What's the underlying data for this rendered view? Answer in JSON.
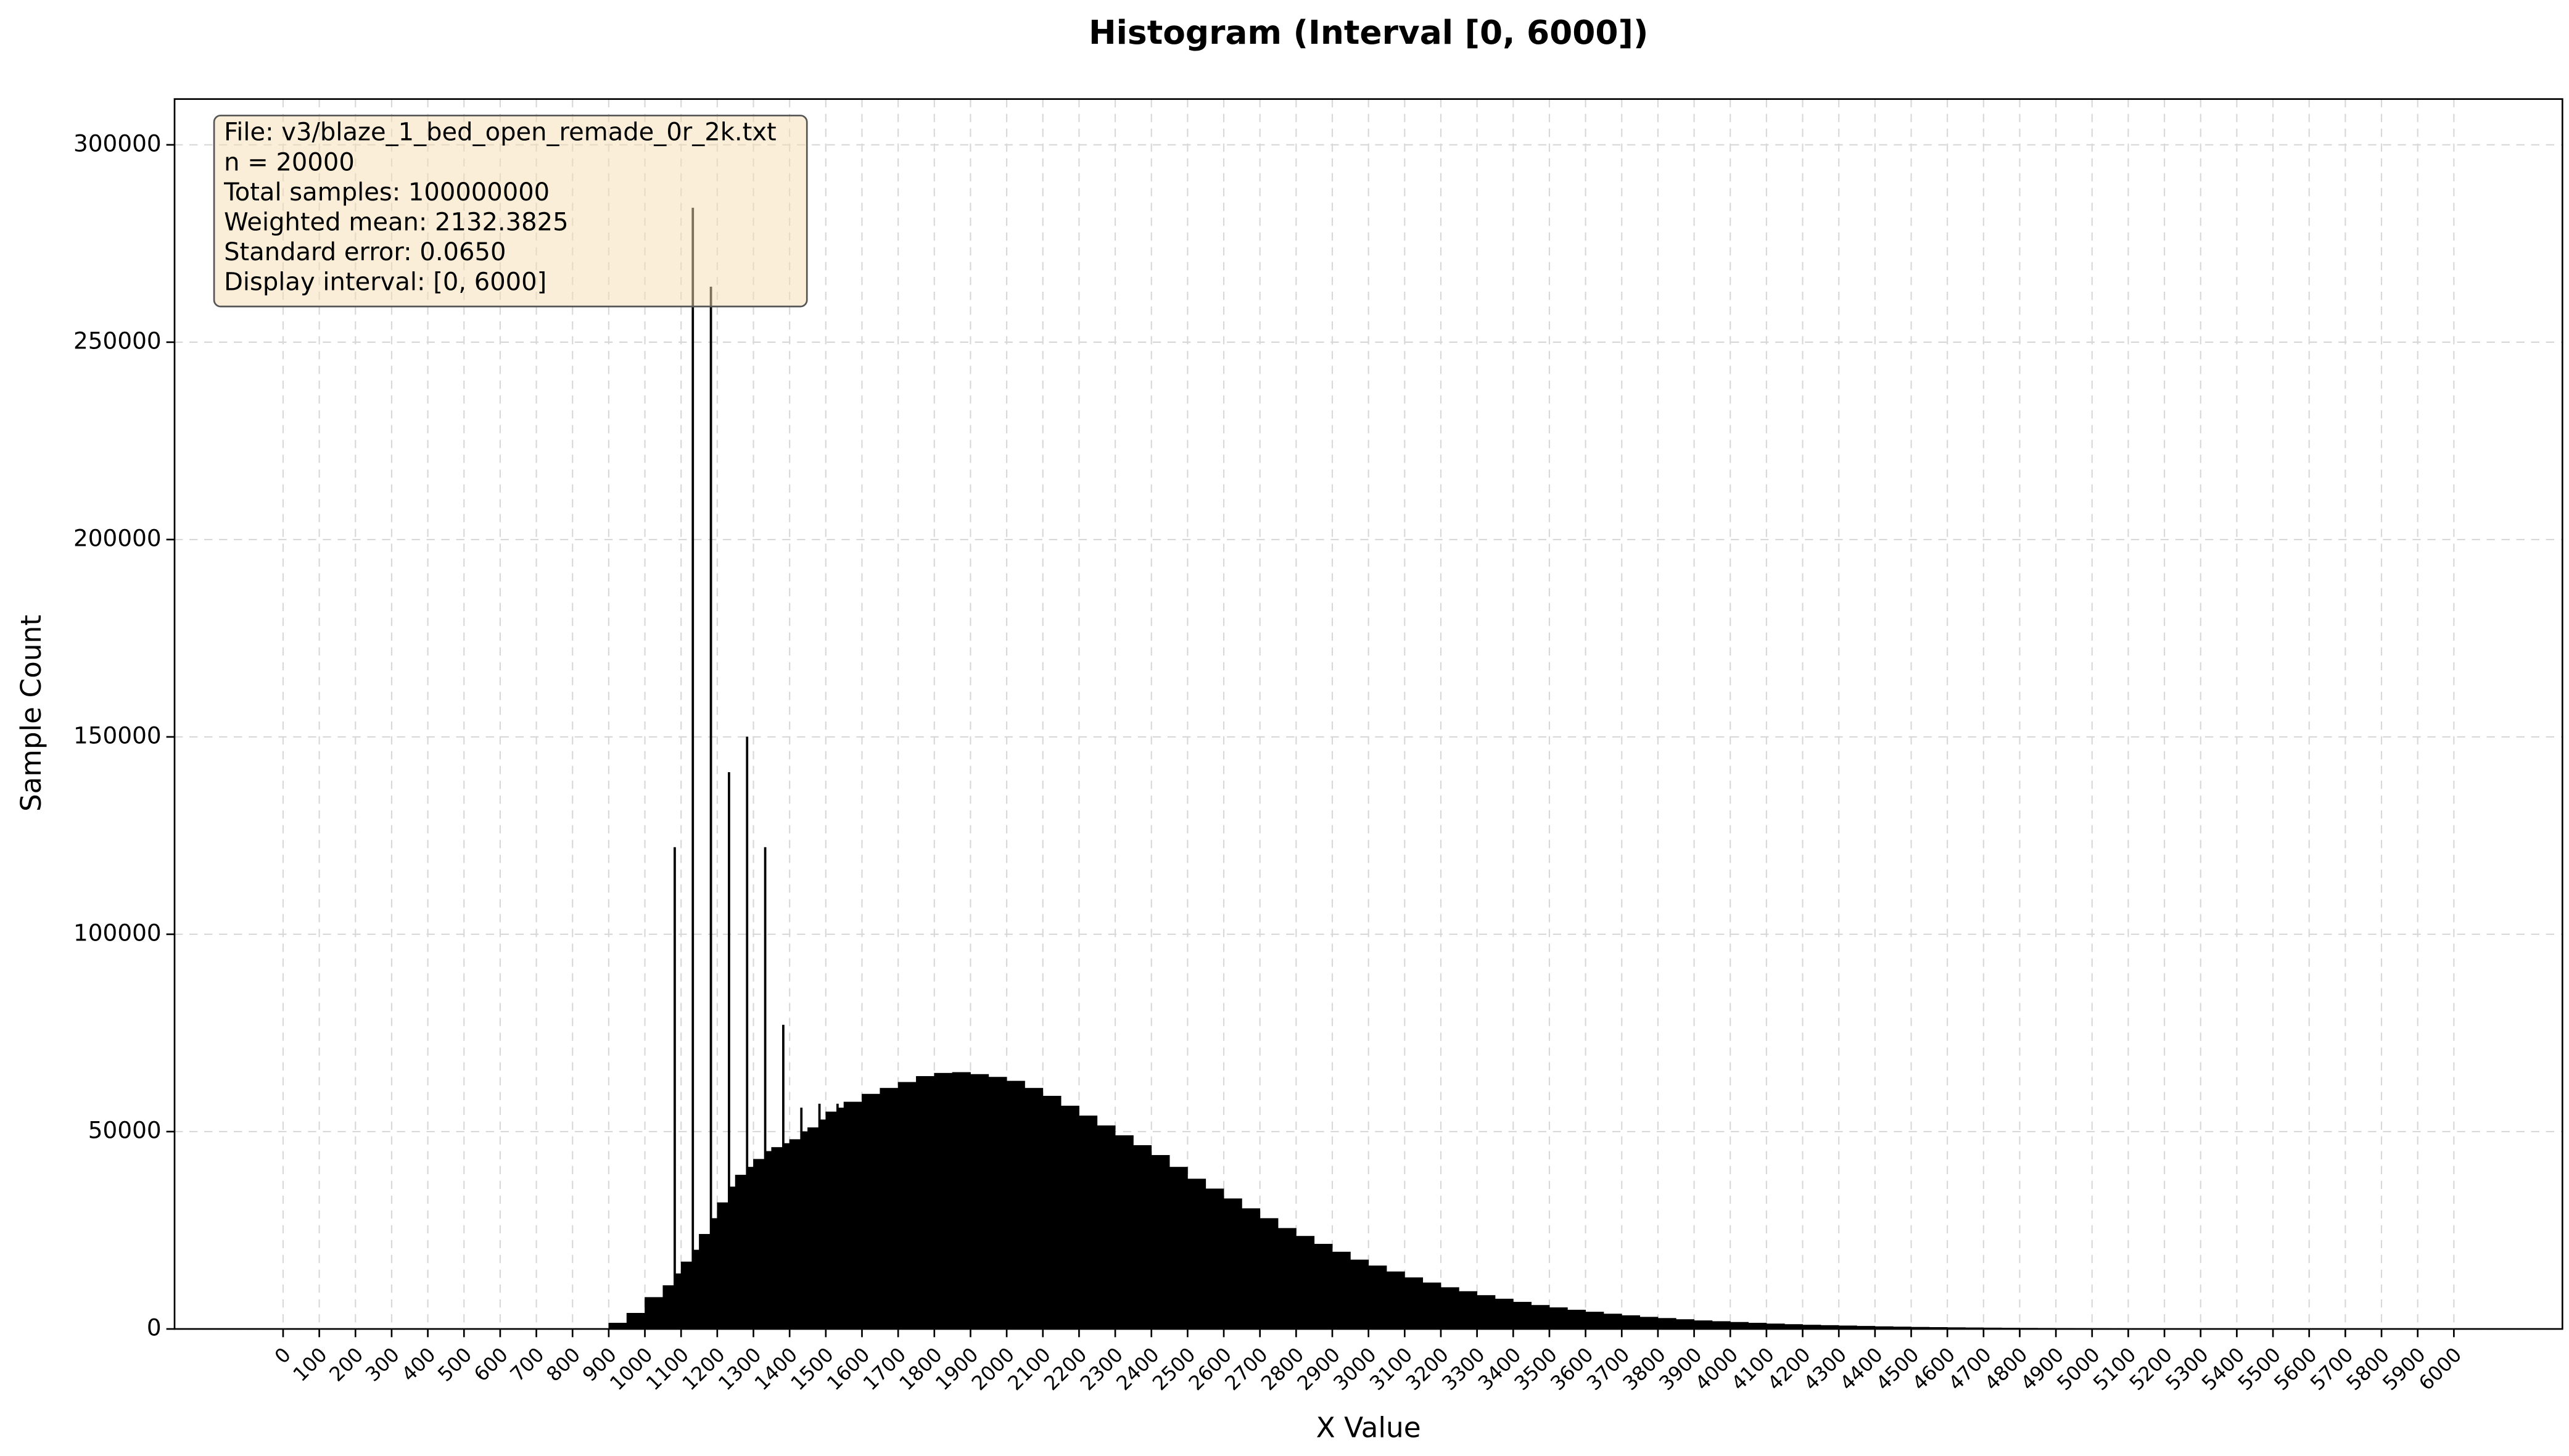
{
  "chart_data": {
    "type": "histogram",
    "title": "Histogram (Interval [0, 6000])",
    "x_label": "X Value",
    "y_label": "Sample Count",
    "info_box": [
      "File: v3/blaze_1_bed_open_remade_0r_2k.txt",
      "n = 20000",
      "Total samples: 100000000",
      "Weighted mean: 2132.3825",
      "Standard error: 0.0650",
      "Display interval: [0, 6000]"
    ],
    "color": "#000000",
    "grid": true,
    "xlim": [
      -300,
      6300
    ],
    "ylim": [
      0,
      311600
    ],
    "xticks": [
      0,
      100,
      200,
      300,
      400,
      500,
      600,
      700,
      800,
      900,
      1000,
      1100,
      1200,
      1300,
      1400,
      1500,
      1600,
      1700,
      1800,
      1900,
      2000,
      2100,
      2200,
      2300,
      2400,
      2500,
      2600,
      2700,
      2800,
      2900,
      3000,
      3100,
      3200,
      3300,
      3400,
      3500,
      3600,
      3700,
      3800,
      3900,
      4000,
      4100,
      4200,
      4300,
      4400,
      4500,
      4600,
      4700,
      4800,
      4900,
      5000,
      5100,
      5200,
      5300,
      5400,
      5500,
      5600,
      5700,
      5800,
      5900,
      6000
    ],
    "yticks": [
      0,
      50000,
      100000,
      150000,
      200000,
      250000,
      300000
    ],
    "bins": [
      900,
      950,
      1000,
      1050,
      1080,
      1085,
      1100,
      1130,
      1135,
      1150,
      1180,
      1185,
      1200,
      1230,
      1235,
      1250,
      1280,
      1285,
      1300,
      1330,
      1335,
      1350,
      1380,
      1385,
      1400,
      1430,
      1435,
      1450,
      1480,
      1485,
      1500,
      1530,
      1535,
      1550,
      1600,
      1650,
      1700,
      1750,
      1800,
      1850,
      1900,
      1950,
      2000,
      2050,
      2100,
      2150,
      2200,
      2250,
      2300,
      2350,
      2400,
      2450,
      2500,
      2550,
      2600,
      2650,
      2700,
      2750,
      2800,
      2850,
      2900,
      2950,
      3000,
      3050,
      3100,
      3150,
      3200,
      3250,
      3300,
      3350,
      3400,
      3450,
      3500,
      3550,
      3600,
      3650,
      3700,
      3750,
      3800,
      3850,
      3900,
      3950,
      4000,
      4050,
      4100,
      4150,
      4200,
      4250,
      4300,
      4350,
      4400,
      4450,
      4500,
      4550,
      4600,
      4650,
      4700,
      4750,
      4800,
      4850,
      4900,
      4950,
      5000,
      5050,
      5100,
      5150,
      5200,
      5250,
      5300,
      5350,
      5400
    ],
    "counts": [
      1500,
      4000,
      8000,
      11000,
      122000,
      14000,
      17000,
      284000,
      20000,
      24000,
      264000,
      28000,
      32000,
      141000,
      36000,
      39000,
      150000,
      41000,
      43000,
      122000,
      45000,
      46000,
      77000,
      47000,
      48000,
      56000,
      50000,
      51000,
      57000,
      53000,
      55000,
      57000,
      56000,
      57500,
      59500,
      61000,
      62500,
      64000,
      64800,
      65000,
      64500,
      63800,
      62800,
      61000,
      59000,
      56500,
      54000,
      51500,
      49000,
      46500,
      44000,
      41000,
      38000,
      35500,
      33000,
      30500,
      28000,
      25500,
      23500,
      21500,
      19500,
      17500,
      16000,
      14500,
      13000,
      11700,
      10500,
      9500,
      8500,
      7600,
      6800,
      6000,
      5400,
      4800,
      4300,
      3800,
      3400,
      3000,
      2700,
      2400,
      2100,
      1900,
      1700,
      1500,
      1300,
      1150,
      1000,
      900,
      800,
      700,
      600,
      520,
      450,
      400,
      350,
      310,
      270,
      230,
      200,
      180,
      160,
      140,
      120,
      105,
      90,
      80,
      70,
      60,
      50,
      40
    ]
  }
}
